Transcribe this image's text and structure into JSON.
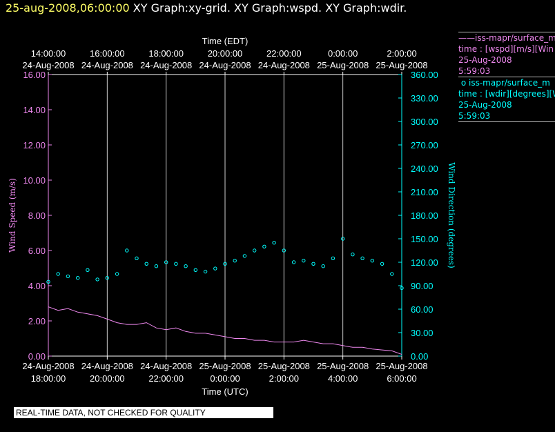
{
  "header": {
    "datetime": "25-aug-2008,06:00:00",
    "graphs": "XY Graph:xy-grid.  XY Graph:wspd.  XY Graph:wdir."
  },
  "footer": {
    "text": "REAL-TIME DATA, NOT CHECKED FOR QUALITY"
  },
  "colors": {
    "wspd": "#ee88ee",
    "wdir": "#00ffff",
    "axis_bottom": "#ffffff",
    "header_date": "#ffff66"
  },
  "legend": {
    "entries": [
      {
        "marker": "——",
        "source": "iss-mapr/surface_m",
        "variable": "time : [wspd][m/s][Win",
        "date": "25-Aug-2008",
        "time": "5:59:03",
        "color": "#ee88ee"
      },
      {
        "marker": "o",
        "source": "iss-mapr/surface_m",
        "variable": "time : [wdir][degrees][W",
        "date": "25-Aug-2008",
        "time": "5:59:03",
        "color": "#00ffff"
      }
    ]
  },
  "chart_data": {
    "type": "scatter",
    "x_top": {
      "label": "Time (EDT)",
      "ticks": [
        {
          "time": "14:00:00",
          "date": "24-Aug-2008"
        },
        {
          "time": "16:00:00",
          "date": "24-Aug-2008"
        },
        {
          "time": "18:00:00",
          "date": "24-Aug-2008"
        },
        {
          "time": "20:00:00",
          "date": "24-Aug-2008"
        },
        {
          "time": "22:00:00",
          "date": "24-Aug-2008"
        },
        {
          "time": "0:00:00",
          "date": "25-Aug-2008"
        },
        {
          "time": "2:00:00",
          "date": "25-Aug-2008"
        }
      ]
    },
    "x_bottom": {
      "label": "Time (UTC)",
      "ticks": [
        {
          "date": "24-Aug-2008",
          "time": "18:00:00"
        },
        {
          "date": "24-Aug-2008",
          "time": "20:00:00"
        },
        {
          "date": "24-Aug-2008",
          "time": "22:00:00"
        },
        {
          "date": "25-Aug-2008",
          "time": "0:00:00"
        },
        {
          "date": "25-Aug-2008",
          "time": "2:00:00"
        },
        {
          "date": "25-Aug-2008",
          "time": "4:00:00"
        },
        {
          "date": "25-Aug-2008",
          "time": "6:00:00"
        }
      ]
    },
    "xlim_utc": [
      "2008-08-24 18:00",
      "2008-08-25 06:00"
    ],
    "grid": "vertical",
    "y_left": {
      "label": "Wind Speed (m/s)",
      "ylim": [
        0,
        16
      ],
      "ticks": [
        "0.00",
        "2.00",
        "4.00",
        "6.00",
        "8.00",
        "10.00",
        "12.00",
        "14.00",
        "16.00"
      ]
    },
    "y_right": {
      "label": "Wind Direction (degrees)",
      "ylim": [
        0,
        360
      ],
      "ticks": [
        "0.00",
        "30.00",
        "60.00",
        "90.00",
        "120.00",
        "150.00",
        "180.00",
        "210.00",
        "240.00",
        "270.00",
        "300.00",
        "330.00",
        "360.00"
      ]
    },
    "series": [
      {
        "key": "wspd",
        "style": "line",
        "axis": "left",
        "points": [
          [
            "2008-08-24 18:00",
            2.8
          ],
          [
            "2008-08-24 18:20",
            2.6
          ],
          [
            "2008-08-24 18:40",
            2.7
          ],
          [
            "2008-08-24 19:00",
            2.5
          ],
          [
            "2008-08-24 19:20",
            2.4
          ],
          [
            "2008-08-24 19:40",
            2.3
          ],
          [
            "2008-08-24 20:00",
            2.1
          ],
          [
            "2008-08-24 20:20",
            1.9
          ],
          [
            "2008-08-24 20:40",
            1.8
          ],
          [
            "2008-08-24 21:00",
            1.8
          ],
          [
            "2008-08-24 21:20",
            1.9
          ],
          [
            "2008-08-24 21:40",
            1.6
          ],
          [
            "2008-08-24 22:00",
            1.5
          ],
          [
            "2008-08-24 22:20",
            1.6
          ],
          [
            "2008-08-24 22:40",
            1.4
          ],
          [
            "2008-08-24 23:00",
            1.3
          ],
          [
            "2008-08-24 23:20",
            1.3
          ],
          [
            "2008-08-24 23:40",
            1.2
          ],
          [
            "2008-08-25 00:00",
            1.1
          ],
          [
            "2008-08-25 00:20",
            1.0
          ],
          [
            "2008-08-25 00:40",
            1.0
          ],
          [
            "2008-08-25 01:00",
            0.9
          ],
          [
            "2008-08-25 01:20",
            0.9
          ],
          [
            "2008-08-25 01:40",
            0.8
          ],
          [
            "2008-08-25 02:00",
            0.8
          ],
          [
            "2008-08-25 02:20",
            0.8
          ],
          [
            "2008-08-25 02:40",
            0.9
          ],
          [
            "2008-08-25 03:00",
            0.8
          ],
          [
            "2008-08-25 03:20",
            0.7
          ],
          [
            "2008-08-25 03:40",
            0.7
          ],
          [
            "2008-08-25 04:00",
            0.6
          ],
          [
            "2008-08-25 04:20",
            0.5
          ],
          [
            "2008-08-25 04:40",
            0.5
          ],
          [
            "2008-08-25 05:00",
            0.4
          ],
          [
            "2008-08-25 05:20",
            0.35
          ],
          [
            "2008-08-25 05:40",
            0.3
          ],
          [
            "2008-08-25 06:00",
            0.1
          ]
        ]
      },
      {
        "key": "wdir",
        "style": "scatter",
        "axis": "right",
        "points": [
          [
            "2008-08-24 18:00",
            95
          ],
          [
            "2008-08-24 18:20",
            105
          ],
          [
            "2008-08-24 18:40",
            102
          ],
          [
            "2008-08-24 19:00",
            100
          ],
          [
            "2008-08-24 19:20",
            110
          ],
          [
            "2008-08-24 19:40",
            98
          ],
          [
            "2008-08-24 20:00",
            100
          ],
          [
            "2008-08-24 20:20",
            105
          ],
          [
            "2008-08-24 20:40",
            135
          ],
          [
            "2008-08-24 21:00",
            125
          ],
          [
            "2008-08-24 21:20",
            118
          ],
          [
            "2008-08-24 21:40",
            115
          ],
          [
            "2008-08-24 22:00",
            120
          ],
          [
            "2008-08-24 22:20",
            118
          ],
          [
            "2008-08-24 22:40",
            115
          ],
          [
            "2008-08-24 23:00",
            110
          ],
          [
            "2008-08-24 23:20",
            108
          ],
          [
            "2008-08-24 23:40",
            112
          ],
          [
            "2008-08-25 00:00",
            118
          ],
          [
            "2008-08-25 00:20",
            122
          ],
          [
            "2008-08-25 00:40",
            128
          ],
          [
            "2008-08-25 01:00",
            135
          ],
          [
            "2008-08-25 01:20",
            140
          ],
          [
            "2008-08-25 01:40",
            145
          ],
          [
            "2008-08-25 02:00",
            135
          ],
          [
            "2008-08-25 02:20",
            120
          ],
          [
            "2008-08-25 02:40",
            122
          ],
          [
            "2008-08-25 03:00",
            118
          ],
          [
            "2008-08-25 03:20",
            115
          ],
          [
            "2008-08-25 03:40",
            125
          ],
          [
            "2008-08-25 04:00",
            150
          ],
          [
            "2008-08-25 04:20",
            130
          ],
          [
            "2008-08-25 04:40",
            125
          ],
          [
            "2008-08-25 05:00",
            122
          ],
          [
            "2008-08-25 05:20",
            118
          ],
          [
            "2008-08-25 05:40",
            105
          ],
          [
            "2008-08-25 06:00",
            87
          ]
        ]
      }
    ]
  }
}
